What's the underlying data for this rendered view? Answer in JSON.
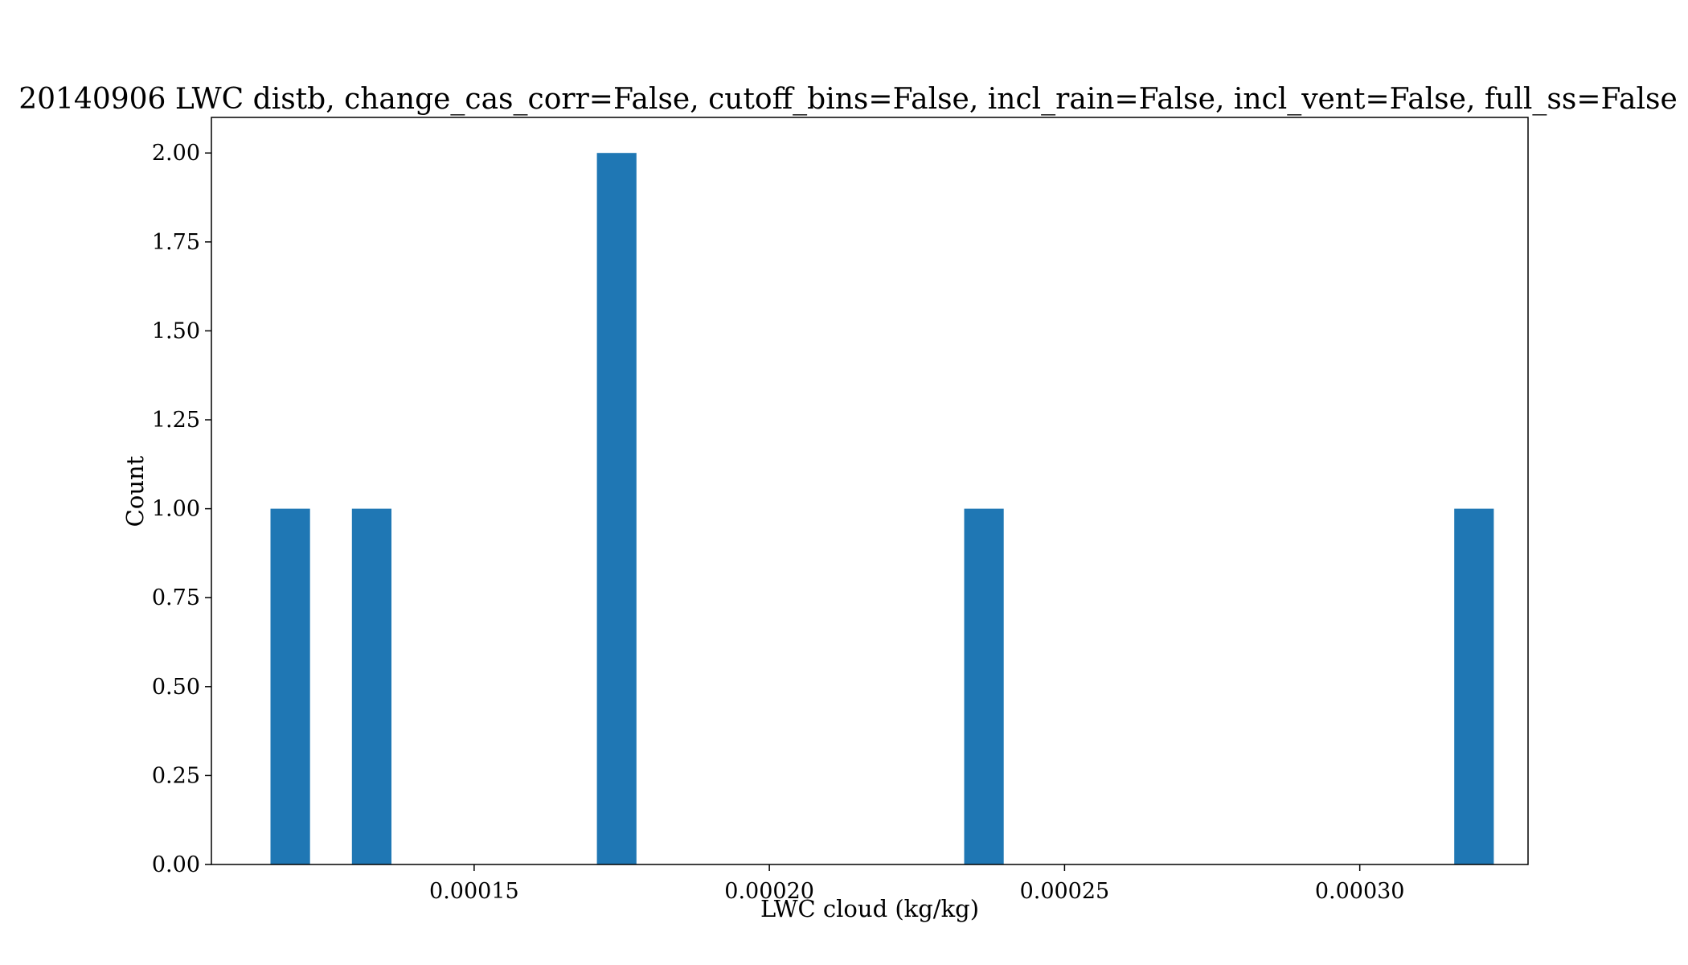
{
  "chart_data": {
    "type": "bar",
    "title": "20140906 LWC distb, change_cas_corr=False, cutoff_bins=False, incl_rain=False, incl_vent=False, full_ss=False",
    "xlabel": "LWC cloud (kg/kg)",
    "ylabel": "Count",
    "xlim": [
      0.0001055,
      0.0003285
    ],
    "ylim": [
      0,
      2.1
    ],
    "bin_width": 6.7e-06,
    "bins": [
      {
        "x_left": 0.0001155,
        "count": 1
      },
      {
        "x_left": 0.0001293,
        "count": 1
      },
      {
        "x_left": 0.0001708,
        "count": 2
      },
      {
        "x_left": 0.000233,
        "count": 1
      },
      {
        "x_left": 0.000316,
        "count": 1
      }
    ],
    "xticks": [
      {
        "value": 0.00015,
        "label": "0.00015"
      },
      {
        "value": 0.0002,
        "label": "0.00020"
      },
      {
        "value": 0.00025,
        "label": "0.00025"
      },
      {
        "value": 0.0003,
        "label": "0.00030"
      }
    ],
    "yticks": [
      {
        "value": 0.0,
        "label": "0.00"
      },
      {
        "value": 0.25,
        "label": "0.25"
      },
      {
        "value": 0.5,
        "label": "0.50"
      },
      {
        "value": 0.75,
        "label": "0.75"
      },
      {
        "value": 1.0,
        "label": "1.00"
      },
      {
        "value": 1.25,
        "label": "1.25"
      },
      {
        "value": 1.5,
        "label": "1.50"
      },
      {
        "value": 1.75,
        "label": "1.75"
      },
      {
        "value": 2.0,
        "label": "2.00"
      }
    ],
    "grid": false,
    "legend": "none",
    "bar_color": "#1f77b4"
  }
}
